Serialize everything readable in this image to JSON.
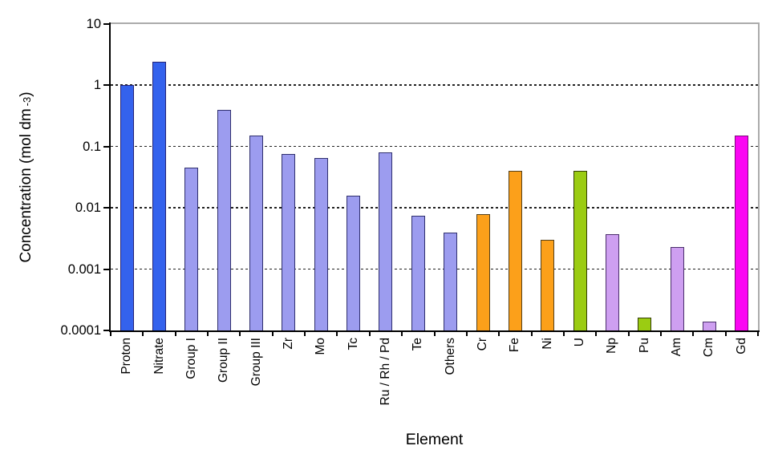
{
  "figure": {
    "xlabel": "Element",
    "ylabel": {
      "main": "Concentration (mol dm",
      "sup": "-3",
      "close": ")"
    }
  },
  "colors": {
    "axis": "#000000",
    "frame": "#ababab",
    "grid": "#222222",
    "background": "#ffffff"
  },
  "chart_data": {
    "type": "bar",
    "title": "",
    "xlabel": "Element",
    "ylabel": "Concentration (mol dm -3)",
    "y_scale": "log",
    "ylim": [
      0.0001,
      10
    ],
    "grid": "horizontal dashed at each decade",
    "legend": "none",
    "yticks": [
      {
        "label": "10",
        "value": 10
      },
      {
        "label": "1",
        "value": 1
      },
      {
        "label": "0.1",
        "value": 0.1
      },
      {
        "label": "0.01",
        "value": 0.01
      },
      {
        "label": "0.001",
        "value": 0.001
      },
      {
        "label": "0.0001",
        "value": 0.0001
      }
    ],
    "gridline_values": [
      1,
      0.1,
      0.01,
      0.001
    ],
    "categories": [
      "Proton",
      "Nitrate",
      "Group I",
      "Group II",
      "Group III",
      "Zr",
      "Mo",
      "Tc",
      "Ru / Rh / Pd",
      "Te",
      "Others",
      "Cr",
      "Fe",
      "Ni",
      "U",
      "Np",
      "Pu",
      "Am",
      "Cm",
      "Gd"
    ],
    "values": [
      1.0,
      2.4,
      0.045,
      0.4,
      0.15,
      0.075,
      0.065,
      0.016,
      0.08,
      0.0075,
      0.004,
      0.008,
      0.04,
      0.003,
      0.04,
      0.0037,
      0.00016,
      0.0023,
      0.00014,
      0.15
    ],
    "bar_fill_colors": [
      "#3462ED",
      "#3462ED",
      "#9C9CEF",
      "#9C9CEF",
      "#9C9CEF",
      "#9C9CEF",
      "#9C9CEF",
      "#9C9CEF",
      "#9C9CEF",
      "#9C9CEF",
      "#9C9CEF",
      "#FCA01A",
      "#FCA01A",
      "#FCA01A",
      "#9BCC12",
      "#CE9FF1",
      "#9BCC12",
      "#CE9FF1",
      "#CE9FF1",
      "#FB05F3"
    ],
    "bar_border_colors": [
      "#232377",
      "#232377",
      "#30306E",
      "#30306E",
      "#30306E",
      "#30306E",
      "#30306E",
      "#30306E",
      "#30306E",
      "#30306E",
      "#30306E",
      "#53401C",
      "#53401C",
      "#53401C",
      "#333D05",
      "#4A2E6B",
      "#333D05",
      "#4A2E6B",
      "#4A2E6B",
      "#7A0B7A"
    ]
  }
}
